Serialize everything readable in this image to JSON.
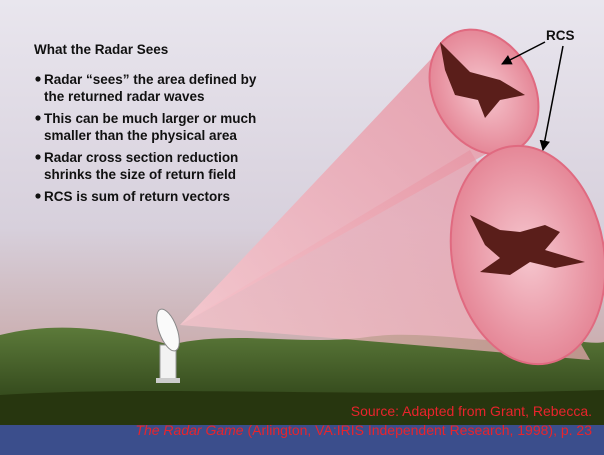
{
  "slide": {
    "title": "What the Radar Sees",
    "bullets": [
      [
        "Radar “sees” the area defined by",
        "the returned radar waves"
      ],
      [
        "This can be much larger or much",
        "smaller than the physical area"
      ],
      [
        "Radar cross section reduction",
        "shrinks the size of return field"
      ],
      [
        "RCS is sum of return vectors"
      ]
    ],
    "label": "RCS",
    "source_line1": "Source: Adapted from Grant, Rebecca.",
    "source_book": "The Radar Game",
    "source_rest": " (Arlington, VA:IRIS Independent Research, 1998), p.  23"
  }
}
